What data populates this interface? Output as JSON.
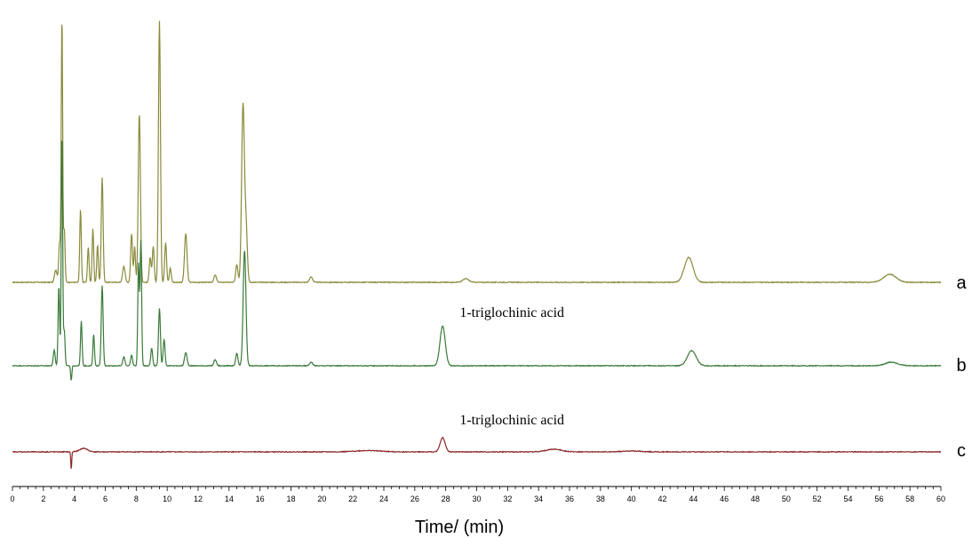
{
  "chart_data": {
    "type": "line",
    "title": "",
    "xlabel": "Time/  (min)",
    "ylabel": "",
    "xlim": [
      0,
      60
    ],
    "x_major_step": 2,
    "x_minor_step": 0.5,
    "grid": false,
    "series": [
      {
        "name": "a",
        "color": "#8a8a3c",
        "peaks": [
          [
            2.8,
            14,
            0.08
          ],
          [
            3.05,
            45,
            0.06
          ],
          [
            3.2,
            300,
            0.045
          ],
          [
            3.35,
            60,
            0.05
          ],
          [
            4.4,
            82,
            0.05
          ],
          [
            4.9,
            40,
            0.05
          ],
          [
            5.2,
            60,
            0.05
          ],
          [
            5.5,
            42,
            0.05
          ],
          [
            5.8,
            118,
            0.06
          ],
          [
            7.2,
            18,
            0.08
          ],
          [
            7.7,
            55,
            0.06
          ],
          [
            7.9,
            40,
            0.05
          ],
          [
            8.2,
            190,
            0.07
          ],
          [
            8.9,
            28,
            0.06
          ],
          [
            9.1,
            40,
            0.06
          ],
          [
            9.5,
            295,
            0.065
          ],
          [
            9.9,
            45,
            0.06
          ],
          [
            10.2,
            16,
            0.06
          ],
          [
            11.2,
            55,
            0.08
          ],
          [
            13.1,
            8,
            0.08
          ],
          [
            14.5,
            20,
            0.07
          ],
          [
            14.9,
            200,
            0.09
          ],
          [
            15.1,
            60,
            0.08
          ],
          [
            19.3,
            6,
            0.1
          ],
          [
            29.3,
            4,
            0.2
          ],
          [
            43.7,
            28,
            0.28
          ],
          [
            56.7,
            9,
            0.4
          ]
        ]
      },
      {
        "name": "b",
        "color": "#3a7a3a",
        "peaks": [
          [
            2.7,
            18,
            0.06
          ],
          [
            3.0,
            90,
            0.05
          ],
          [
            3.2,
            265,
            0.045
          ],
          [
            3.35,
            40,
            0.05
          ],
          [
            3.8,
            -17,
            0.04
          ],
          [
            4.45,
            50,
            0.05
          ],
          [
            5.25,
            35,
            0.05
          ],
          [
            5.8,
            90,
            0.06
          ],
          [
            7.2,
            10,
            0.07
          ],
          [
            7.7,
            12,
            0.06
          ],
          [
            8.15,
            115,
            0.05
          ],
          [
            8.3,
            140,
            0.05
          ],
          [
            9.0,
            20,
            0.06
          ],
          [
            9.5,
            65,
            0.06
          ],
          [
            9.8,
            30,
            0.06
          ],
          [
            11.2,
            15,
            0.08
          ],
          [
            13.1,
            7,
            0.08
          ],
          [
            14.5,
            14,
            0.07
          ],
          [
            15.0,
            130,
            0.09
          ],
          [
            19.3,
            4,
            0.1
          ],
          [
            27.8,
            45,
            0.17
          ],
          [
            43.9,
            17,
            0.28
          ],
          [
            56.8,
            4,
            0.4
          ]
        ]
      },
      {
        "name": "c",
        "color": "#8b2a2a",
        "peaks": [
          [
            3.8,
            -20,
            0.03
          ],
          [
            4.6,
            4,
            0.25
          ],
          [
            27.8,
            16,
            0.16
          ],
          [
            35,
            3,
            0.5
          ],
          [
            23,
            1.5,
            0.8
          ],
          [
            40,
            1,
            0.6
          ]
        ]
      }
    ],
    "annotations": [
      {
        "text": "1-triglochinic acid",
        "series": "b",
        "x": 27.8
      },
      {
        "text": "1-triglochinic acid",
        "series": "c",
        "x": 27.8
      }
    ],
    "x_tick_labels": [
      "0",
      "2",
      "4",
      "6",
      "8",
      "10",
      "12",
      "14",
      "16",
      "18",
      "20",
      "22",
      "24",
      "26",
      "28",
      "30",
      "32",
      "34",
      "36",
      "38",
      "40",
      "42",
      "44",
      "46",
      "48",
      "50",
      "52",
      "54",
      "56",
      "58",
      "60"
    ]
  }
}
